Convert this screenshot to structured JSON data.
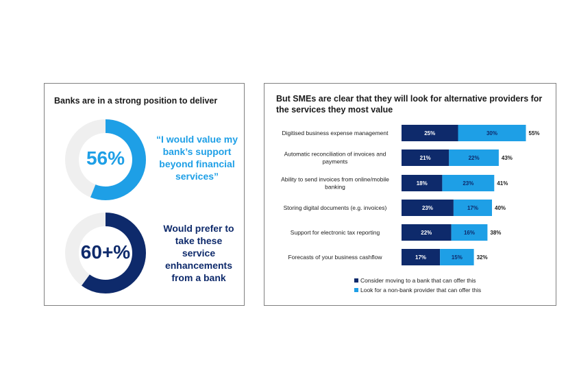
{
  "left_panel": {
    "title": "Banks are in a strong position to deliver",
    "stat1": {
      "value": "56%",
      "percent": 56,
      "text": "“I would value my bank’s support beyond financial services”",
      "color": "#1e9fe6"
    },
    "stat2": {
      "value": "60+%",
      "percent": 60,
      "text": "Would prefer to take these service enhancements from a bank",
      "color": "#0e2a6b"
    },
    "ring_track_color": "#efefef"
  },
  "right_panel": {
    "title": "But SMEs are clear that they will look for alternative providers for the services they most value"
  },
  "chart_data": {
    "type": "bar",
    "orientation": "horizontal",
    "stacked": true,
    "categories": [
      "Digitised business expense management",
      "Automatic reconciliation of invoices and payments",
      "Ability to send invoices from online/mobile banking",
      "Storing digital documents (e.g. invoices)",
      "Support for electronic tax reporting",
      "Forecasts of your business cashflow"
    ],
    "series": [
      {
        "name": "Consider moving to a bank that can offer this",
        "values": [
          25,
          21,
          18,
          23,
          22,
          17
        ],
        "labels": [
          "25%",
          "21%",
          "18%",
          "23%",
          "22%",
          "17%"
        ],
        "color": "#0e2a6b"
      },
      {
        "name": "Look for a non-bank provider that can offer this",
        "values": [
          30,
          22,
          23,
          17,
          16,
          15
        ],
        "labels": [
          "30%",
          "22%",
          "23%",
          "17%",
          "16%",
          "15%"
        ],
        "color": "#1e9fe6"
      }
    ],
    "totals": [
      "55%",
      "43%",
      "41%",
      "40%",
      "38%",
      "32%"
    ],
    "xlim": [
      0,
      55
    ],
    "legend_position": "bottom"
  }
}
